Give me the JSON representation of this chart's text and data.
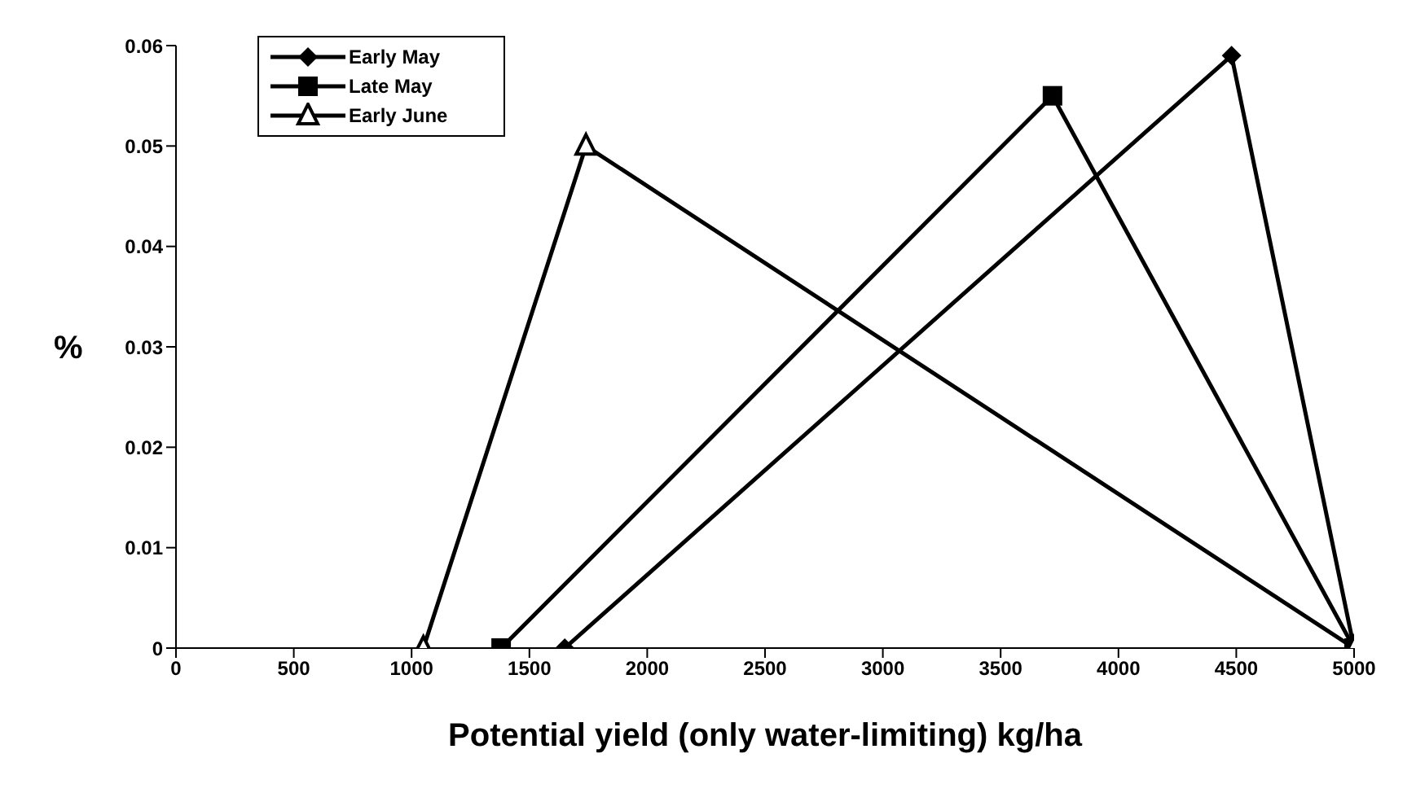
{
  "chart_data": {
    "type": "line",
    "xlabel": "Potential yield (only water-limiting) kg/ha",
    "ylabel": "%",
    "xlim": [
      0,
      5000
    ],
    "xticks": [
      0,
      500,
      1000,
      1500,
      2000,
      2500,
      3000,
      3500,
      4000,
      4500,
      5000
    ],
    "ylim": [
      0,
      0.06
    ],
    "yticks": [
      0,
      0.01,
      0.02,
      0.03,
      0.04,
      0.05,
      0.06
    ],
    "grid": false,
    "legend": "top left",
    "series": [
      {
        "name": "Early May",
        "color": "#000000",
        "marker": "diamond",
        "x": [
          1650,
          4480,
          5000
        ],
        "values": [
          0,
          0.059,
          0
        ]
      },
      {
        "name": "Late May",
        "color": "#000000",
        "marker": "square",
        "x": [
          1380,
          3720,
          5000
        ],
        "values": [
          0,
          0.055,
          0
        ]
      },
      {
        "name": "Early June",
        "color": "#000000",
        "marker": "triangle",
        "x": [
          1050,
          1740,
          5000
        ],
        "values": [
          0,
          0.05,
          0
        ]
      }
    ]
  }
}
